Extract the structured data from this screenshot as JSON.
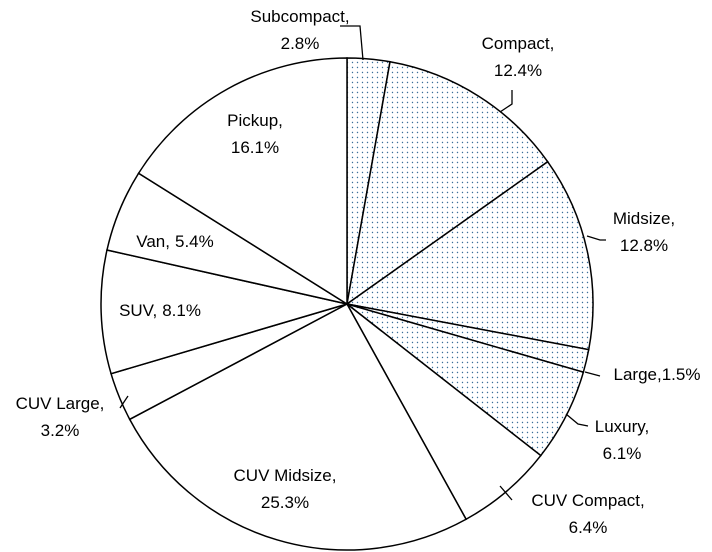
{
  "chart_data": {
    "type": "pie",
    "categories": [
      "Subcompact,",
      "Compact,",
      "Midsize,",
      "Large,",
      "Luxury,",
      "CUV Compact,",
      "CUV Midsize,",
      "CUV Large,",
      "SUV,",
      "Van,",
      "Pickup,"
    ],
    "values": [
      2.8,
      12.4,
      12.8,
      1.5,
      6.1,
      6.4,
      25.3,
      3.2,
      8.1,
      5.4,
      16.1
    ],
    "value_labels": [
      "2.8%",
      "12.4%",
      "12.8%",
      "1.5%",
      "6.1%",
      "6.4%",
      "25.3%",
      "3.2%",
      "8.1%",
      "5.4%",
      "16.1%"
    ],
    "patterns": [
      "dots",
      "dots",
      "dots",
      "dots",
      "dots",
      "none",
      "none",
      "none",
      "none",
      "none",
      "none"
    ],
    "color": "#ffffff",
    "pattern_color": "#3a6f9a"
  }
}
